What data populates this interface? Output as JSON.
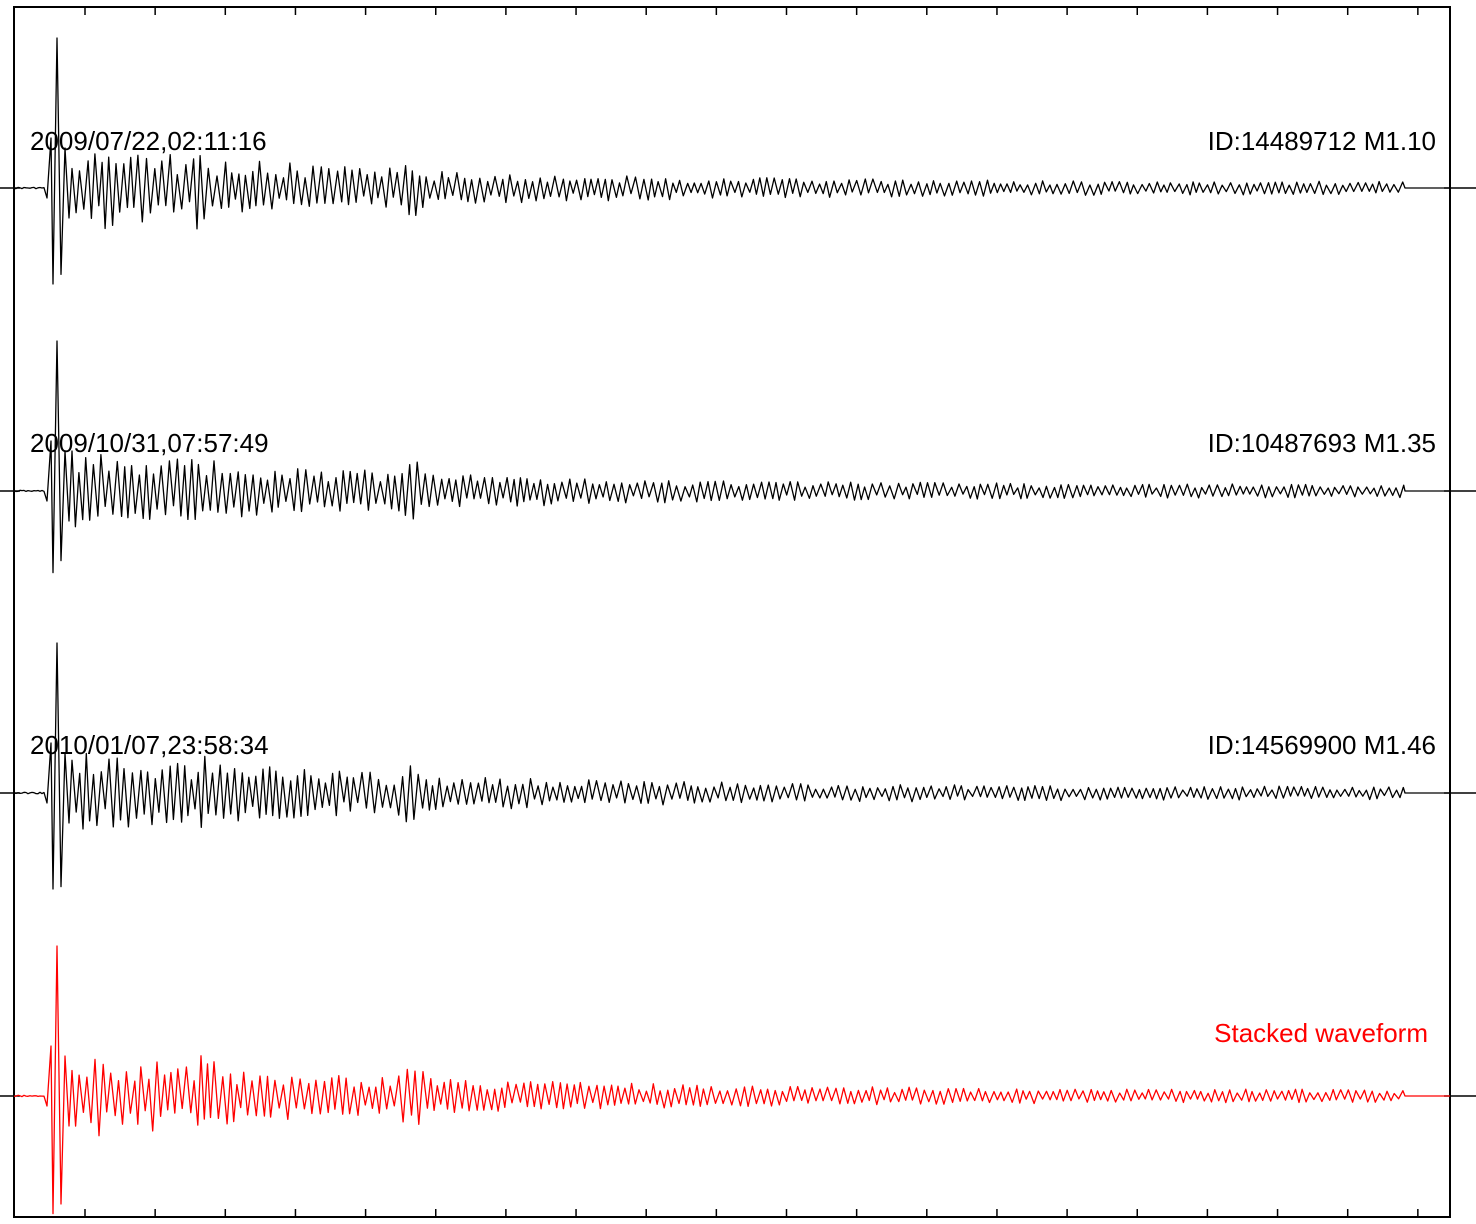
{
  "chart_data": {
    "type": "line",
    "title": "",
    "xlabel": "",
    "ylabel": "",
    "grid": false,
    "traces": [
      {
        "date_label": "2009/07/22,02:11:16",
        "event_label": "ID:14489712 M1.10",
        "color": "#000000",
        "primary_peak": 1.0,
        "primary_trough": -0.8,
        "secondary_trough": -0.72
      },
      {
        "date_label": "2009/10/31,07:57:49",
        "event_label": "ID:10487693 M1.35",
        "color": "#000000",
        "primary_peak": 1.0,
        "primary_trough": -0.68,
        "secondary_trough": -0.58
      },
      {
        "date_label": "2010/01/07,23:58:34",
        "event_label": "ID:14569900 M1.46",
        "color": "#000000",
        "primary_peak": 1.0,
        "primary_trough": -0.8,
        "secondary_trough": -0.78
      },
      {
        "date_label": "",
        "event_label": "Stacked waveform",
        "color": "#ff0000",
        "primary_peak": 1.0,
        "primary_trough": -0.98,
        "secondary_trough": -0.9
      }
    ]
  }
}
